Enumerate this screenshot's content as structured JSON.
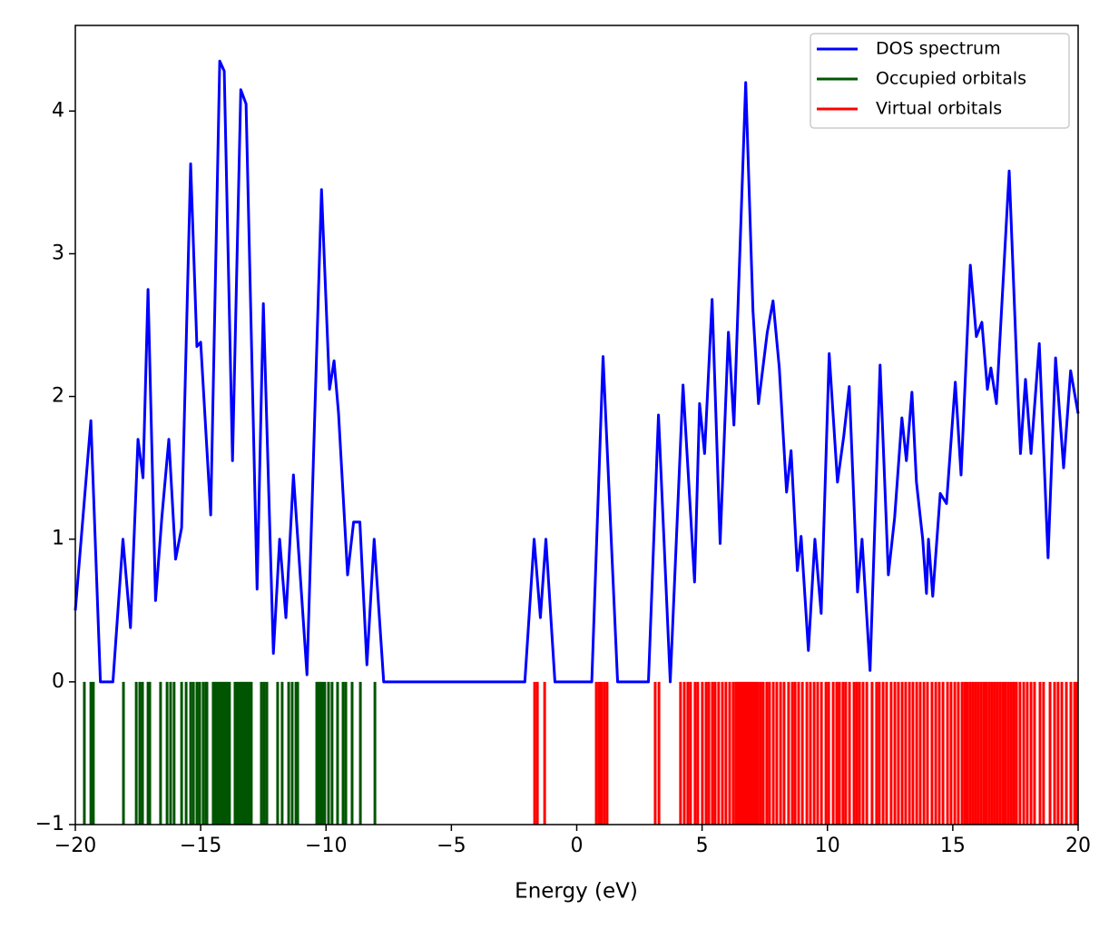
{
  "chart_data": {
    "type": "line",
    "xlabel": "Energy (eV)",
    "xlim": [
      -20,
      20
    ],
    "xticks": [
      {
        "value": -20,
        "label": "−20"
      },
      {
        "value": -15,
        "label": "−15"
      },
      {
        "value": -10,
        "label": "−10"
      },
      {
        "value": -5,
        "label": "−5"
      },
      0,
      5,
      10,
      15,
      20
    ],
    "ylim": [
      -1,
      4.6
    ],
    "yticks": [
      {
        "value": -1,
        "label": "−1"
      },
      0,
      1,
      2,
      3,
      4
    ],
    "legend": "upper right",
    "series": [
      {
        "name": "DOS spectrum",
        "color": "#0000ff",
        "x": [
          -20,
          -19.38,
          -19,
          -18.5,
          -18.1,
          -17.8,
          -17.5,
          -17.3,
          -17.1,
          -16.8,
          -16.55,
          -16.27,
          -16.0,
          -15.76,
          -15.4,
          -15.15,
          -15.0,
          -14.6,
          -14.24,
          -14.06,
          -13.73,
          -13.4,
          -13.19,
          -12.75,
          -12.5,
          -12.1,
          -11.85,
          -11.6,
          -11.3,
          -10.76,
          -10.18,
          -9.86,
          -9.68,
          -9.5,
          -9.14,
          -8.9,
          -8.65,
          -8.37,
          -8.08,
          -7.7,
          -2.07,
          -1.7,
          -1.45,
          -1.23,
          -0.87,
          0.6,
          1.05,
          1.63,
          2.86,
          3.26,
          3.73,
          4.24,
          4.7,
          4.9,
          5.1,
          5.4,
          5.72,
          6.05,
          6.27,
          6.74,
          7.03,
          7.25,
          7.6,
          7.83,
          8.08,
          8.37,
          8.55,
          8.8,
          8.95,
          9.24,
          9.5,
          9.75,
          10.07,
          10.4,
          10.65,
          10.87,
          11.2,
          11.38,
          11.7,
          12.1,
          12.43,
          12.68,
          12.97,
          13.15,
          13.37,
          13.55,
          13.8,
          13.95,
          14.03,
          14.2,
          14.5,
          14.75,
          15.1,
          15.33,
          15.7,
          15.94,
          16.16,
          16.38,
          16.52,
          16.74,
          17.25,
          17.6,
          17.7,
          17.9,
          18.12,
          18.45,
          18.8,
          19.1,
          19.42,
          19.7,
          20
        ],
        "values": [
          0.5,
          1.83,
          0,
          0,
          1.0,
          0.38,
          1.7,
          1.43,
          2.75,
          0.57,
          1.15,
          1.7,
          0.86,
          1.08,
          3.63,
          2.35,
          2.38,
          1.17,
          4.35,
          4.28,
          1.55,
          4.15,
          4.05,
          0.65,
          2.65,
          0.2,
          1.0,
          0.45,
          1.45,
          0.05,
          3.45,
          2.05,
          2.25,
          1.88,
          0.75,
          1.12,
          1.12,
          0.12,
          1.0,
          0,
          0,
          1.0,
          0.45,
          1.0,
          0,
          0,
          2.28,
          0,
          0,
          1.87,
          0,
          2.08,
          0.7,
          1.95,
          1.6,
          2.68,
          0.97,
          2.45,
          1.8,
          4.2,
          2.6,
          1.95,
          2.45,
          2.67,
          2.2,
          1.33,
          1.62,
          0.78,
          1.02,
          0.22,
          1.0,
          0.48,
          2.3,
          1.4,
          1.72,
          2.07,
          0.63,
          1.0,
          0.08,
          2.22,
          0.75,
          1.15,
          1.85,
          1.55,
          2.03,
          1.4,
          1.0,
          0.62,
          1.0,
          0.6,
          1.32,
          1.25,
          2.1,
          1.45,
          2.92,
          2.42,
          2.52,
          2.05,
          2.2,
          1.95,
          3.58,
          2.0,
          1.6,
          2.12,
          1.6,
          2.37,
          0.87,
          2.27,
          1.5,
          2.18,
          1.88
        ]
      },
      {
        "name": "Occupied orbitals",
        "color": "#005500",
        "x": [
          -19.64,
          -19.38,
          -19.28,
          -18.08,
          -17.57,
          -17.43,
          -17.32,
          -17.1,
          -17.03,
          -16.6,
          -16.34,
          -16.2,
          -16.06,
          -15.76,
          -15.58,
          -15.4,
          -15.29,
          -15.15,
          -15.04,
          -14.9,
          -14.79,
          -14.75,
          -14.5,
          -14.43,
          -14.35,
          -14.28,
          -14.21,
          -14.14,
          -14.06,
          -13.99,
          -13.92,
          -13.85,
          -13.63,
          -13.56,
          -13.48,
          -13.41,
          -13.34,
          -13.27,
          -13.19,
          -13.12,
          -13.05,
          -12.98,
          -12.58,
          -12.47,
          -12.36,
          -11.93,
          -11.75,
          -11.49,
          -11.35,
          -11.2,
          -11.13,
          -10.37,
          -10.3,
          -10.23,
          -10.15,
          -10.05,
          -9.9,
          -9.76,
          -9.54,
          -9.32,
          -9.21,
          -8.96,
          -8.63,
          -8.05
        ]
      },
      {
        "name": "Virtual orbitals",
        "color": "#ff0000",
        "x": [
          -1.68,
          -1.57,
          -1.28,
          0.78,
          0.89,
          0.99,
          1.1,
          1.21,
          3.13,
          3.28,
          4.14,
          4.29,
          4.43,
          4.54,
          4.72,
          4.83,
          5.01,
          5.16,
          5.27,
          5.41,
          5.52,
          5.66,
          5.81,
          5.95,
          6.1,
          6.24,
          6.35,
          6.43,
          6.5,
          6.57,
          6.64,
          6.71,
          6.79,
          6.86,
          6.93,
          7.0,
          7.08,
          7.15,
          7.22,
          7.33,
          7.44,
          7.58,
          7.69,
          7.84,
          7.98,
          8.13,
          8.27,
          8.45,
          8.6,
          8.71,
          8.85,
          9.0,
          9.18,
          9.32,
          9.47,
          9.61,
          9.76,
          9.94,
          10.05,
          10.23,
          10.37,
          10.48,
          10.62,
          10.73,
          10.88,
          11.06,
          11.17,
          11.28,
          11.42,
          11.57,
          11.78,
          11.96,
          12.07,
          12.22,
          12.36,
          12.54,
          12.69,
          12.83,
          12.98,
          13.12,
          13.27,
          13.41,
          13.56,
          13.7,
          13.85,
          13.99,
          14.17,
          14.32,
          14.46,
          14.61,
          14.79,
          14.93,
          15.08,
          15.22,
          15.37,
          15.48,
          15.58,
          15.69,
          15.8,
          15.91,
          16.02,
          16.13,
          16.24,
          16.34,
          16.45,
          16.56,
          16.67,
          16.78,
          16.89,
          17.0,
          17.1,
          17.21,
          17.32,
          17.43,
          17.54,
          17.68,
          17.83,
          17.97,
          18.12,
          18.26,
          18.48,
          18.62,
          18.88,
          19.06,
          19.2,
          19.35,
          19.53,
          19.71,
          19.86,
          19.96
        ]
      }
    ]
  }
}
